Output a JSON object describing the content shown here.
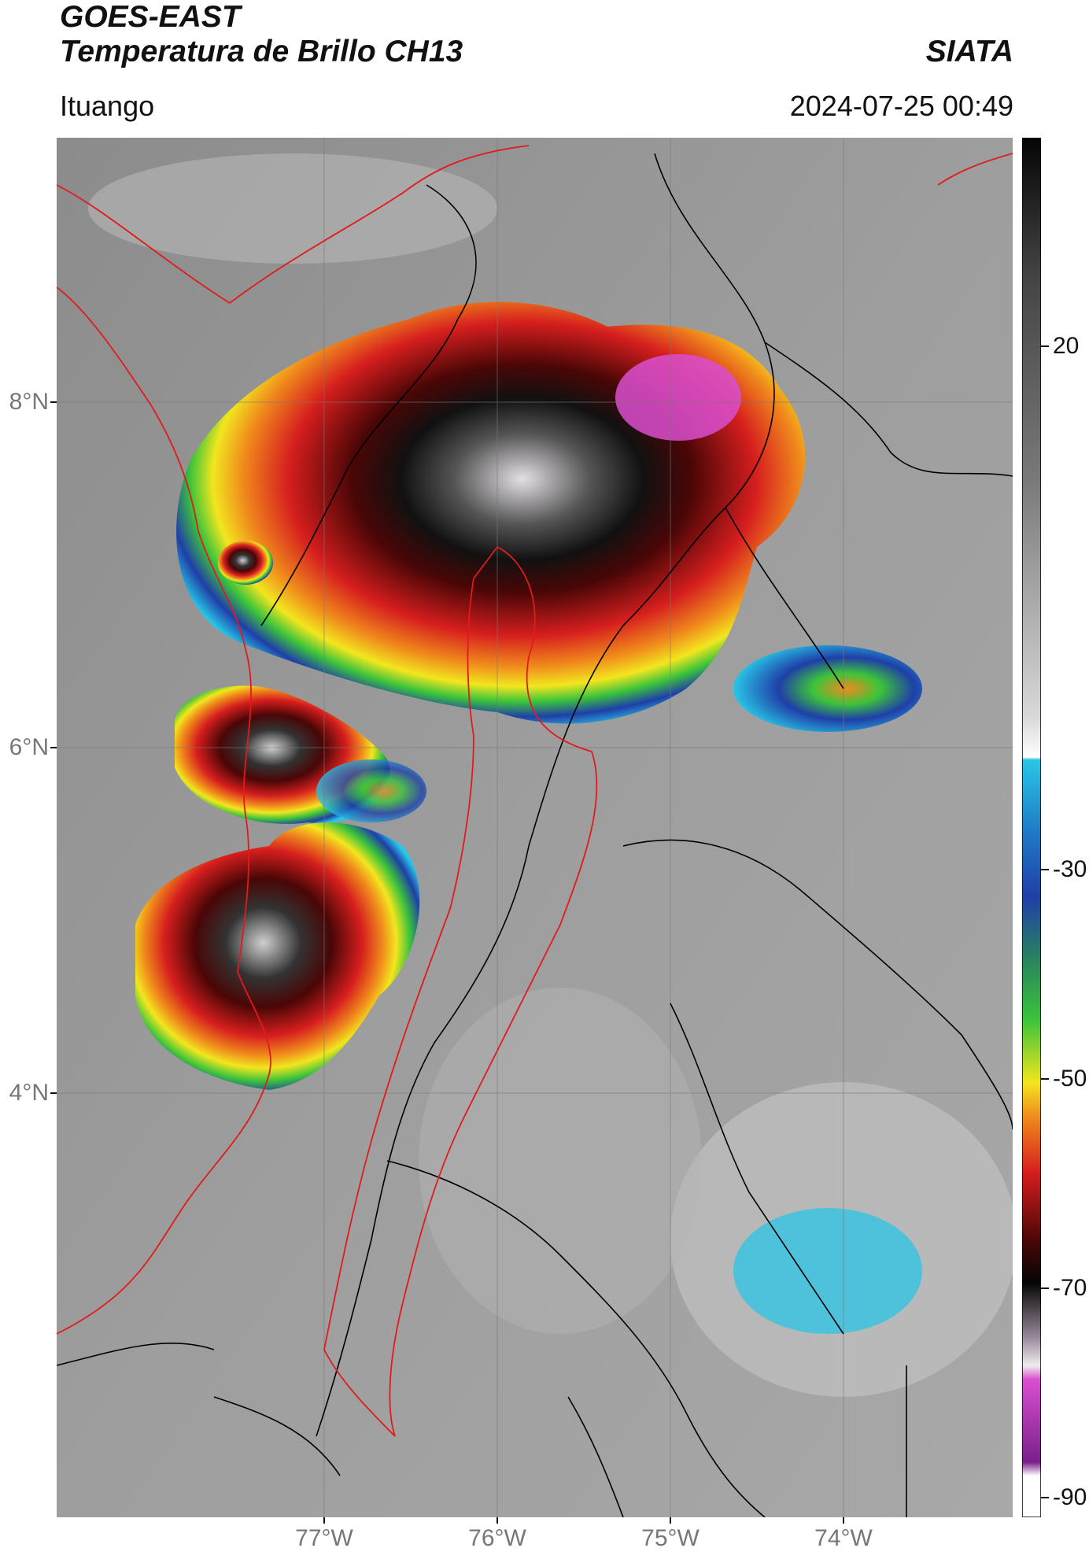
{
  "header": {
    "title_line1": "GOES-EAST",
    "title_line2": "Temperatura de Brillo CH13",
    "brand": "SIATA",
    "location": "Ituango",
    "timestamp": "2024-07-25 00:49"
  },
  "axes": {
    "lat_labels": [
      "8°N",
      "6°N",
      "4°N"
    ],
    "lon_labels": [
      "77°W",
      "76°W",
      "75°W",
      "74°W"
    ]
  },
  "colorbar": {
    "labels": [
      "20",
      "-30",
      "-50",
      "-70",
      "-90"
    ],
    "unit": "",
    "colors": {
      "warm_gray": "#9a9a9a",
      "cyan": "#29c6e6",
      "blue": "#1f3fa8",
      "green": "#3cc43a",
      "yellow": "#f2e61e",
      "orange": "#f08a1c",
      "red": "#d61e1e",
      "dark_red": "#4a0606",
      "black": "#111111",
      "magenta": "#d94fd0",
      "purple": "#7a1f8a"
    }
  },
  "overlays": {
    "borders_color": "#000000",
    "region_outline_color": "#e11b1b"
  }
}
